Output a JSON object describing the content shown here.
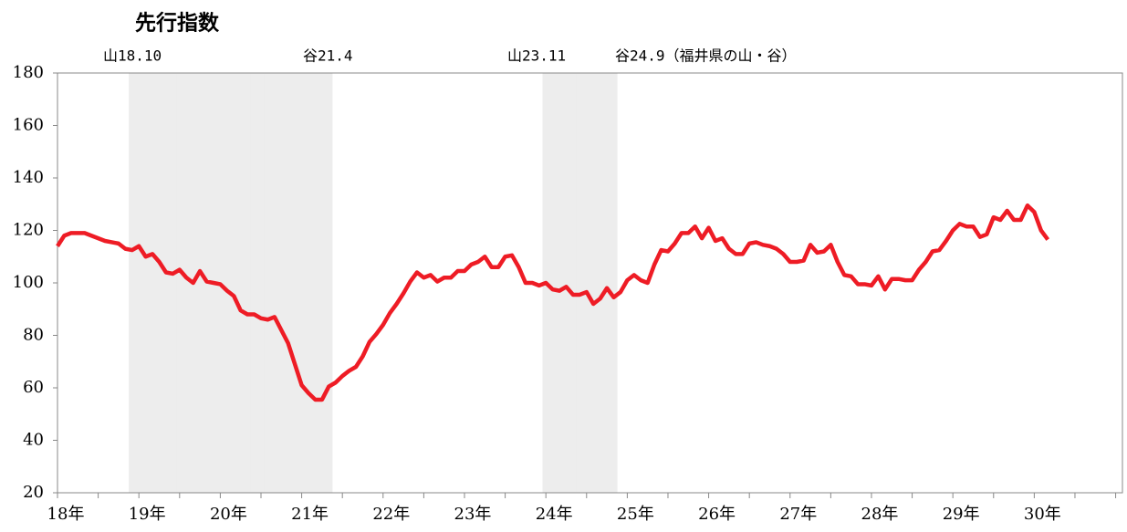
{
  "chart_data": {
    "type": "line",
    "title": "先行指数",
    "annotations": [
      "山18.10",
      "谷21.4",
      "山23.11",
      "谷24.9（福井県の山・谷）"
    ],
    "categories": [
      "18年",
      null,
      null,
      null,
      null,
      null,
      null,
      null,
      null,
      null,
      null,
      null,
      "19年",
      null,
      null,
      null,
      null,
      null,
      null,
      null,
      null,
      null,
      null,
      null,
      "20年",
      null,
      null,
      null,
      null,
      null,
      null,
      null,
      null,
      null,
      null,
      null,
      "21年",
      null,
      null,
      null,
      null,
      null,
      null,
      null,
      null,
      null,
      null,
      null,
      "22年",
      null,
      null,
      null,
      null,
      null,
      null,
      null,
      null,
      null,
      null,
      null,
      "23年",
      null,
      null,
      null,
      null,
      null,
      null,
      null,
      null,
      null,
      null,
      null,
      "24年",
      null,
      null,
      null,
      null,
      null,
      null,
      null,
      null,
      null,
      null,
      null,
      "25年",
      null,
      null,
      null,
      null,
      null,
      null,
      null,
      null,
      null,
      null,
      null,
      "26年",
      null,
      null,
      null,
      null,
      null,
      null,
      null,
      null,
      null,
      null,
      null,
      "27年",
      null,
      null,
      null,
      null,
      null,
      null,
      null,
      null,
      null,
      null,
      null,
      "28年",
      null,
      null,
      null,
      null,
      null,
      null,
      null,
      null,
      null,
      null,
      null,
      "29年",
      null,
      null,
      null,
      null,
      null,
      null,
      null,
      null,
      null,
      null,
      null,
      "30年",
      null,
      null,
      null,
      null,
      null,
      null,
      null,
      null,
      null,
      null,
      null,
      null
    ],
    "series": [
      {
        "color": "#ee1c25",
        "values": [
          114,
          118,
          119,
          119,
          119,
          118,
          117,
          116,
          115.5,
          115,
          113,
          112.5,
          114,
          110,
          111,
          108,
          104,
          103.5,
          105,
          102,
          100,
          104.5,
          100.5,
          100,
          99.5,
          97,
          95,
          89.5,
          88,
          88,
          86.5,
          86,
          87,
          82,
          77,
          69,
          61,
          58,
          55.5,
          55.5,
          60.5,
          62,
          64.5,
          66.5,
          68,
          72,
          77.5,
          80.5,
          84,
          88.5,
          92,
          96,
          100.5,
          104,
          102,
          103,
          100.5,
          102,
          102,
          104.5,
          104.5,
          107,
          108,
          110,
          106,
          106,
          110,
          110.5,
          106,
          100,
          100,
          99,
          100,
          97.5,
          97,
          98.5,
          95.5,
          95.5,
          96.5,
          92,
          94,
          98,
          94.5,
          96.5,
          101,
          103,
          101,
          100,
          107,
          112.5,
          112,
          115,
          119,
          119,
          121.5,
          117,
          121,
          116,
          117,
          113,
          111,
          111,
          115,
          115.5,
          114.5,
          114,
          113,
          111,
          108,
          108,
          108.5,
          114.5,
          111.5,
          112,
          114.5,
          108,
          103,
          102.5,
          99.5,
          99.5,
          99,
          102.5,
          97.5,
          101.5,
          101.5,
          101,
          101,
          105,
          108,
          112,
          112.5,
          116,
          120,
          122.5,
          121.5,
          121.5,
          117.5,
          118.5,
          125,
          124,
          127.5,
          124,
          124,
          129.5,
          127,
          120,
          116.5,
          null,
          null,
          null,
          null,
          null,
          null,
          null,
          null,
          null,
          null
        ]
      }
    ],
    "shading": {
      "color": "#ededed",
      "values": [
        null,
        null,
        null,
        null,
        null,
        null,
        null,
        null,
        null,
        null,
        null,
        180,
        180,
        180,
        180,
        180,
        180,
        180,
        180,
        180,
        180,
        180,
        180,
        180,
        180,
        180,
        180,
        180,
        180,
        180,
        180,
        180,
        180,
        180,
        180,
        180,
        180,
        180,
        180,
        180,
        180,
        null,
        null,
        null,
        null,
        null,
        null,
        null,
        null,
        null,
        null,
        null,
        null,
        null,
        null,
        null,
        null,
        null,
        null,
        null,
        null,
        null,
        null,
        null,
        null,
        null,
        null,
        null,
        null,
        null,
        null,
        null,
        180,
        180,
        180,
        180,
        180,
        180,
        180,
        180,
        180,
        180,
        180,
        null,
        null,
        null,
        null,
        null,
        null,
        null,
        null,
        null,
        null,
        null,
        null,
        null,
        null,
        null,
        null,
        null,
        null,
        null,
        null,
        null,
        null,
        null,
        null,
        null,
        null,
        null,
        null,
        null,
        null,
        null,
        null,
        null,
        null,
        null,
        null,
        null,
        null,
        null,
        null,
        null,
        null,
        null,
        null,
        null,
        null,
        null,
        null,
        null,
        null,
        null,
        null,
        null,
        null,
        null,
        null,
        null,
        null,
        null,
        null,
        null,
        null,
        null,
        null,
        null,
        null,
        null,
        null,
        null,
        null,
        null,
        null,
        null,
        null
      ]
    },
    "ylim": [
      20,
      180
    ],
    "yticks": [
      20,
      40,
      60,
      80,
      100,
      120,
      140,
      160,
      180
    ],
    "grid": false
  }
}
